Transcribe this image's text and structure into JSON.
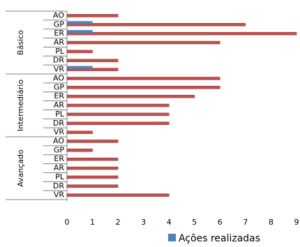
{
  "chart_data": {
    "type": "bar",
    "orientation": "horizontal",
    "title": "",
    "xlabel": "",
    "ylabel": "",
    "xlim": [
      0,
      9
    ],
    "x_ticks": [
      "0",
      "1",
      "2",
      "3",
      "4",
      "5",
      "6",
      "7",
      "8",
      "9"
    ],
    "grid": false,
    "legend_position": "bottom-right",
    "colors": {
      "primary": "#c0504d",
      "secondary": "#4f81bd"
    },
    "groups": [
      {
        "name": "Básico",
        "categories": [
          "AO",
          "GP",
          "ER",
          "AR",
          "PL",
          "DR",
          "VR"
        ],
        "values": [
          2,
          7,
          9,
          6,
          1,
          2,
          2
        ],
        "secondary": [
          0,
          1,
          1,
          0,
          0,
          0,
          1
        ]
      },
      {
        "name": "Intermediário",
        "categories": [
          "AO",
          "GP",
          "ER",
          "AR",
          "PL",
          "DR",
          "VR"
        ],
        "values": [
          6,
          6,
          5,
          4,
          4,
          4,
          1
        ],
        "secondary": [
          0,
          0,
          0,
          0,
          0,
          0,
          0
        ]
      },
      {
        "name": "Avançado",
        "categories": [
          "AO",
          "GP",
          "ER",
          "AR",
          "PL",
          "DR",
          "VR"
        ],
        "values": [
          2,
          1,
          2,
          2,
          2,
          2,
          4
        ],
        "secondary": [
          0,
          0,
          0,
          0,
          0,
          0,
          0
        ]
      }
    ],
    "legend": [
      {
        "label": "Ações realizadas",
        "color": "#4f81bd"
      }
    ]
  }
}
